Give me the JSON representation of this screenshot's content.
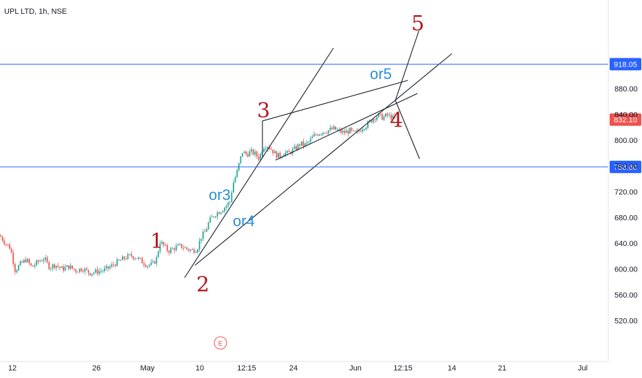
{
  "title": "UPL LTD, 1h, NSE",
  "chart_data": {
    "type": "candlestick",
    "symbol": "UPL LTD",
    "interval": "1h",
    "exchange": "NSE",
    "y_axis": {
      "ticks": [
        "880.00",
        "840.00",
        "800.00",
        "760.00",
        "720.00",
        "680.00",
        "640.00",
        "600.00",
        "560.00",
        "520.00"
      ],
      "range": [
        510,
        962
      ]
    },
    "x_axis": {
      "ticks": [
        "12",
        "26",
        "May",
        "10",
        "12:15",
        "24",
        "Jun",
        "12:15",
        "14",
        "21",
        "Jul"
      ]
    },
    "price_levels": [
      {
        "label": "918.05",
        "value": 918.05,
        "color": "#2962ff"
      },
      {
        "label": "758.60",
        "value": 758.6,
        "color": "#2962ff"
      }
    ],
    "last_price": {
      "label": "832.10",
      "value": 832.1,
      "color": "#ef5350"
    },
    "waypoints": [
      [
        0,
        652
      ],
      [
        8,
        640
      ],
      [
        15,
        633
      ],
      [
        22,
        598
      ],
      [
        30,
        608
      ],
      [
        38,
        615
      ],
      [
        46,
        603
      ],
      [
        56,
        612
      ],
      [
        64,
        617
      ],
      [
        72,
        603
      ],
      [
        80,
        607
      ],
      [
        90,
        600
      ],
      [
        100,
        604
      ],
      [
        110,
        598
      ],
      [
        120,
        601
      ],
      [
        130,
        594
      ],
      [
        140,
        596
      ],
      [
        150,
        598
      ],
      [
        158,
        602
      ],
      [
        166,
        608
      ],
      [
        174,
        613
      ],
      [
        182,
        618
      ],
      [
        190,
        621
      ],
      [
        198,
        618
      ],
      [
        206,
        612
      ],
      [
        214,
        606
      ],
      [
        222,
        608
      ],
      [
        228,
        618
      ],
      [
        232,
        643
      ],
      [
        238,
        636
      ],
      [
        244,
        628
      ],
      [
        250,
        631
      ],
      [
        256,
        634
      ],
      [
        262,
        636
      ],
      [
        270,
        632
      ],
      [
        278,
        629
      ],
      [
        286,
        631
      ],
      [
        292,
        650
      ],
      [
        298,
        658
      ],
      [
        304,
        675
      ],
      [
        310,
        683
      ],
      [
        316,
        688
      ],
      [
        322,
        692
      ],
      [
        328,
        698
      ],
      [
        334,
        705
      ],
      [
        338,
        732
      ],
      [
        344,
        750
      ],
      [
        348,
        768
      ],
      [
        352,
        782
      ],
      [
        358,
        778
      ],
      [
        364,
        782
      ],
      [
        370,
        779
      ],
      [
        376,
        772
      ],
      [
        382,
        790
      ],
      [
        388,
        792
      ],
      [
        394,
        786
      ],
      [
        400,
        778
      ],
      [
        406,
        775
      ],
      [
        412,
        781
      ],
      [
        418,
        779
      ],
      [
        424,
        784
      ],
      [
        430,
        788
      ],
      [
        436,
        795
      ],
      [
        442,
        792
      ],
      [
        448,
        797
      ],
      [
        454,
        805
      ],
      [
        460,
        810
      ],
      [
        468,
        813
      ],
      [
        476,
        815
      ],
      [
        484,
        818
      ],
      [
        492,
        814
      ],
      [
        500,
        812
      ],
      [
        508,
        815
      ],
      [
        514,
        810
      ],
      [
        520,
        813
      ],
      [
        526,
        820
      ],
      [
        532,
        823
      ],
      [
        538,
        830
      ],
      [
        544,
        836
      ],
      [
        550,
        838
      ],
      [
        556,
        835
      ],
      [
        562,
        839
      ],
      [
        568,
        836
      ],
      [
        574,
        832
      ]
    ],
    "wave_labels_red": [
      "1",
      "2",
      "3",
      "4",
      "5"
    ],
    "wave_labels_blue": [
      "or3",
      "or4",
      "or5"
    ],
    "event_marker": "E"
  }
}
